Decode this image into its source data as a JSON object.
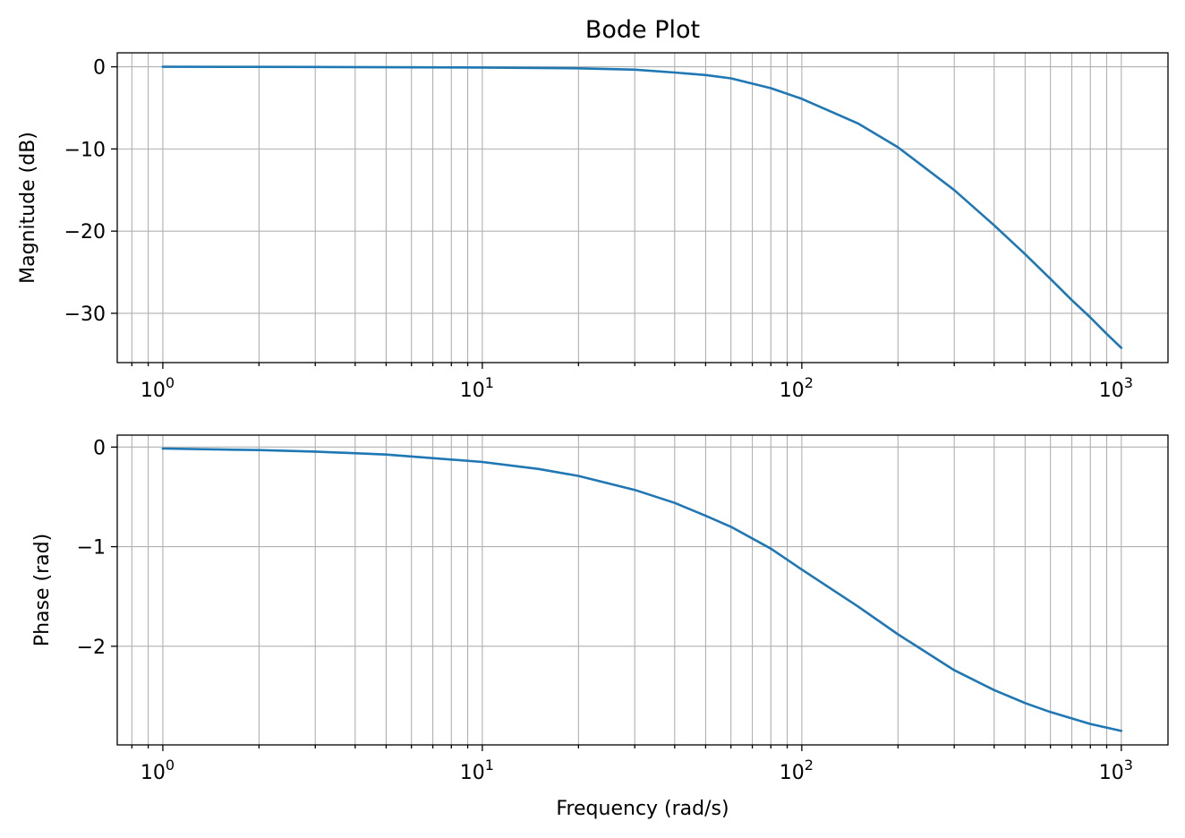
{
  "chart_data": [
    {
      "type": "line",
      "title": "Bode Plot",
      "xlabel": "",
      "ylabel": "Magnitude (dB)",
      "xscale": "log",
      "xlim": [
        0.72,
        1400
      ],
      "ylim": [
        -36.0,
        1.7
      ],
      "grid": "major and minor",
      "xticks": [
        1,
        10,
        100,
        1000
      ],
      "yticks": [
        0,
        -10,
        -20,
        -30
      ],
      "ytick_labels": [
        "0",
        "−10",
        "−20",
        "−30"
      ],
      "series": [
        {
          "color": "#1f77b4",
          "x": [
            1,
            2,
            3,
            5,
            10,
            20,
            30,
            40,
            50,
            60,
            80,
            100,
            150,
            200,
            300,
            400,
            500,
            600,
            700,
            800,
            900,
            1000
          ],
          "y": [
            0.0,
            -0.01,
            -0.02,
            -0.05,
            -0.09,
            -0.18,
            -0.35,
            -0.7,
            -1.0,
            -1.4,
            -2.6,
            -3.9,
            -6.9,
            -9.8,
            -15.0,
            -19.3,
            -22.8,
            -25.8,
            -28.4,
            -30.5,
            -32.5,
            -34.2
          ]
        }
      ]
    },
    {
      "type": "line",
      "title": "",
      "xlabel": "Frequency (rad/s)",
      "ylabel": "Phase (rad)",
      "xscale": "log",
      "xlim": [
        0.72,
        1400
      ],
      "ylim": [
        -2.99,
        0.12
      ],
      "grid": "major and minor",
      "xticks": [
        1,
        10,
        100,
        1000
      ],
      "yticks": [
        0,
        -1,
        -2
      ],
      "ytick_labels": [
        "0",
        "−1",
        "−2"
      ],
      "series": [
        {
          "color": "#1f77b4",
          "x": [
            1,
            2,
            3,
            5,
            10,
            15,
            20,
            30,
            40,
            50,
            60,
            80,
            100,
            150,
            200,
            300,
            400,
            500,
            600,
            800,
            1000
          ],
          "y": [
            -0.015,
            -0.03,
            -0.045,
            -0.075,
            -0.15,
            -0.22,
            -0.29,
            -0.43,
            -0.56,
            -0.69,
            -0.8,
            -1.02,
            -1.23,
            -1.6,
            -1.88,
            -2.24,
            -2.44,
            -2.57,
            -2.66,
            -2.78,
            -2.85
          ]
        }
      ]
    }
  ]
}
